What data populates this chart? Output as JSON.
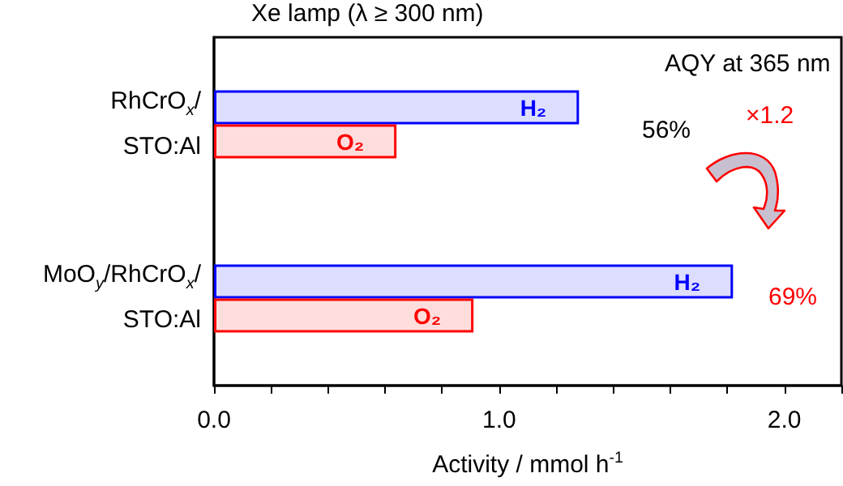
{
  "chart_data": {
    "type": "bar",
    "orientation": "horizontal",
    "title": "Xe lamp (λ ≥ 300 nm)",
    "xlabel": "Activity / mmol h$^{-1}$",
    "categories": [
      "RhCrO$_{x}$/\nSTO:Al",
      "MoO$_{y}$/RhCrO$_{x}$/\nSTO:Al"
    ],
    "series": [
      {
        "name": "H₂",
        "color": "#0000ff",
        "values": [
          1.28,
          1.82
        ]
      },
      {
        "name": "O₂",
        "color": "#ff0000",
        "values": [
          0.64,
          0.91
        ]
      }
    ],
    "xlim": [
      0,
      2.2
    ],
    "xticks": [
      {
        "value": 0,
        "label": "0.0"
      },
      {
        "value": 0.2,
        "label": null
      },
      {
        "value": 0.4,
        "label": null
      },
      {
        "value": 0.6,
        "label": null
      },
      {
        "value": 0.8,
        "label": null
      },
      {
        "value": 1,
        "label": "1.0"
      },
      {
        "value": 1.2,
        "label": null
      },
      {
        "value": 1.4,
        "label": null
      },
      {
        "value": 1.6,
        "label": null
      },
      {
        "value": 1.8,
        "label": null
      },
      {
        "value": 2,
        "label": "2.0"
      },
      {
        "value": 2.2,
        "label": null
      }
    ],
    "annotations": [
      "AQY at 365 nm",
      "56%",
      "69%",
      "×1.2"
    ],
    "grid": false,
    "legend": false
  }
}
